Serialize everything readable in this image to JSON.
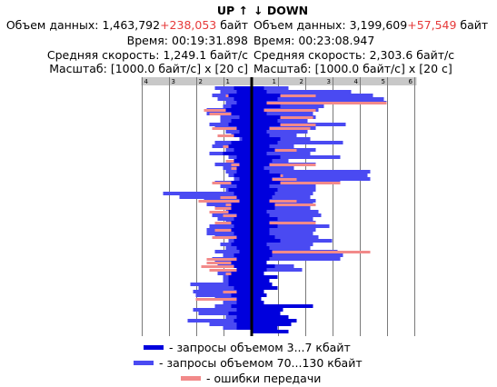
{
  "colors": {
    "small": "#0000dd",
    "large": "#4a4af2",
    "error": "#f28a8a",
    "axis_bar": "#c8c8c8",
    "grid": "#7a7a7a",
    "center": "#000000"
  },
  "up": {
    "title": "UP ↑",
    "volume_label": "Объем данных:",
    "volume_value": "1,463,792",
    "volume_err": "+238,053",
    "volume_unit": "байт",
    "time_label": "Время:",
    "time_value": "00:19:31.898",
    "speed_label": "Средняя скорость:",
    "speed_value": "1,249.1 байт/с",
    "scale_label": "Масштаб:",
    "scale_value": "[1000.0 байт/с] x [20 с]"
  },
  "down": {
    "title": "↓ DOWN",
    "volume_label": "Объем данных:",
    "volume_value": "3,199,609",
    "volume_err": "+57,549",
    "volume_unit": "байт",
    "time_label": "Время:",
    "time_value": "00:23:08.947",
    "speed_label": "Средняя скорость:",
    "speed_value": "2,303.6 байт/с",
    "scale_label": "Масштаб:",
    "scale_value": "[1000.0 байт/с] x [20 с]"
  },
  "legend": {
    "small": "- запросы объемом 3...7 кбайт",
    "large": "- запросы объемом 70...130 кбайт",
    "error": "- ошибки передачи"
  },
  "chart_data": {
    "type": "bar",
    "orientation": "horizontal-mirrored",
    "x_unit": "1000 байт/с",
    "y_unit": "20 с",
    "up_ticks": [
      "4",
      "3",
      "2",
      "1"
    ],
    "down_ticks": [
      "1",
      "2",
      "3",
      "4",
      "5",
      "6"
    ],
    "up_xlim": [
      0,
      4
    ],
    "down_xlim": [
      0,
      6
    ],
    "up_rows": [
      [
        0.6,
        1.3,
        0
      ],
      [
        0.5,
        1.1,
        0
      ],
      [
        0.8,
        1.4,
        0.9
      ],
      [
        0.6,
        1.2,
        0
      ],
      [
        0.5,
        0.9,
        0
      ],
      [
        0.7,
        1.0,
        0
      ],
      [
        0.9,
        1.6,
        1.7
      ],
      [
        0.7,
        1.6,
        1.5
      ],
      [
        0.4,
        1.1,
        0
      ],
      [
        0.7,
        1.1,
        0
      ],
      [
        0.8,
        1.5,
        0
      ],
      [
        0.5,
        1.3,
        1.4
      ],
      [
        0.4,
        0.9,
        0
      ],
      [
        0.6,
        0.7,
        1.2
      ],
      [
        0.3,
        0.4,
        0
      ],
      [
        0.7,
        1.3,
        0
      ],
      [
        0.8,
        1.4,
        1.0
      ],
      [
        0.6,
        0.9,
        0.6
      ],
      [
        1.0,
        1.5,
        0
      ],
      [
        0.5,
        0.8,
        0
      ],
      [
        0.6,
        0.6,
        0.9
      ],
      [
        0.4,
        1.3,
        0.7
      ],
      [
        0.5,
        1.0,
        0.7
      ],
      [
        0.5,
        0.9,
        0
      ],
      [
        0.6,
        0.8,
        0
      ],
      [
        0.4,
        0.6,
        0
      ],
      [
        0.7,
        1.3,
        1.4
      ],
      [
        0.5,
        1.1,
        0
      ],
      [
        0.8,
        0.9,
        0
      ],
      [
        0.6,
        3.2,
        0
      ],
      [
        0.5,
        2.6,
        1.1
      ],
      [
        0.4,
        1.7,
        1.9
      ],
      [
        0.7,
        1.6,
        0.9
      ],
      [
        0.7,
        1.3,
        1.3
      ],
      [
        0.8,
        0.9,
        1.5
      ],
      [
        0.5,
        1.4,
        1.0
      ],
      [
        0.6,
        1.2,
        0
      ],
      [
        0.7,
        0.9,
        1.3
      ],
      [
        0.6,
        1.5,
        0
      ],
      [
        0.7,
        1.6,
        1.3
      ],
      [
        0.6,
        1.6,
        0
      ],
      [
        0.5,
        1.3,
        1.4
      ],
      [
        0.6,
        0.8,
        0
      ],
      [
        0.7,
        1.1,
        0
      ],
      [
        0.5,
        0.9,
        0
      ],
      [
        0.4,
        1.3,
        0
      ],
      [
        0.6,
        1.0,
        0
      ],
      [
        0.5,
        1.4,
        1.6
      ],
      [
        0.7,
        1.3,
        1.6
      ],
      [
        0.6,
        1.2,
        1.8
      ],
      [
        0.5,
        0.5,
        1.5
      ],
      [
        0.7,
        1.2,
        0.9
      ],
      [
        0.8,
        1.0,
        0
      ],
      [
        0.8,
        1.0,
        0
      ],
      [
        0.8,
        2.2,
        0
      ],
      [
        0.6,
        1.9,
        0
      ],
      [
        0.5,
        2.1,
        1.0
      ],
      [
        0.7,
        2.0,
        0
      ],
      [
        0.5,
        1.3,
        2.0
      ],
      [
        0.5,
        1.0,
        0
      ],
      [
        0.7,
        1.3,
        0
      ],
      [
        0.5,
        2.1,
        0
      ],
      [
        0.8,
        1.9,
        0
      ],
      [
        0.5,
        0.9,
        0
      ],
      [
        0.6,
        2.3,
        0
      ],
      [
        0.5,
        1.5,
        0
      ],
      [
        0.5,
        1.0,
        0
      ]
    ],
    "down_rows": [
      [
        0.4,
        1.3,
        0
      ],
      [
        0.5,
        3.6,
        0
      ],
      [
        1.0,
        4.4,
        2.3
      ],
      [
        0.9,
        4.8,
        0
      ],
      [
        0.5,
        4.9,
        4.9
      ],
      [
        1.0,
        2.6,
        0
      ],
      [
        0.4,
        2.4,
        2.3
      ],
      [
        0.5,
        2.2,
        0
      ],
      [
        1.0,
        2.3,
        2.2
      ],
      [
        0.9,
        2.0,
        0
      ],
      [
        1.0,
        3.4,
        2.3
      ],
      [
        0.6,
        2.3,
        2.1
      ],
      [
        0.5,
        2.0,
        0
      ],
      [
        0.6,
        1.6,
        0
      ],
      [
        1.0,
        2.1,
        0
      ],
      [
        0.9,
        3.3,
        0
      ],
      [
        0.6,
        1.5,
        0
      ],
      [
        0.8,
        2.3,
        1.6
      ],
      [
        0.5,
        2.1,
        0
      ],
      [
        1.0,
        3.2,
        0
      ],
      [
        0.7,
        1.3,
        0
      ],
      [
        0.6,
        2.3,
        2.3
      ],
      [
        0.4,
        1.5,
        0
      ],
      [
        0.6,
        4.3,
        0
      ],
      [
        1.0,
        4.2,
        1.1
      ],
      [
        0.7,
        4.3,
        1.6
      ],
      [
        1.0,
        3.2,
        3.2
      ],
      [
        0.6,
        2.3,
        0
      ],
      [
        0.9,
        2.3,
        0
      ],
      [
        0.8,
        2.2,
        0
      ],
      [
        0.7,
        2.1,
        0
      ],
      [
        0.6,
        2.3,
        1.6
      ],
      [
        0.8,
        2.2,
        2.3
      ],
      [
        0.8,
        2.1,
        0
      ],
      [
        0.5,
        2.4,
        0.4
      ],
      [
        0.6,
        2.5,
        0
      ],
      [
        0.9,
        2.2,
        0
      ],
      [
        0.6,
        2.3,
        2.3
      ],
      [
        0.9,
        2.8,
        0
      ],
      [
        0.6,
        2.3,
        0
      ],
      [
        0.6,
        2.2,
        0.3
      ],
      [
        0.8,
        2.4,
        0
      ],
      [
        1.0,
        2.9,
        0
      ],
      [
        0.5,
        2.2,
        0
      ],
      [
        0.6,
        2.1,
        0
      ],
      [
        0.7,
        3.1,
        4.3
      ],
      [
        0.7,
        3.3,
        0
      ],
      [
        0.6,
        3.2,
        0
      ],
      [
        0.5,
        0,
        0
      ],
      [
        0.8,
        1.5,
        0
      ],
      [
        0.5,
        1.8,
        0
      ],
      [
        0.4,
        0,
        0.4
      ],
      [
        0.9,
        0,
        0
      ],
      [
        0.6,
        0,
        0
      ],
      [
        0.7,
        0,
        0
      ],
      [
        0.9,
        0,
        0
      ],
      [
        0.4,
        0,
        0
      ],
      [
        0.5,
        0,
        0
      ],
      [
        0.3,
        0,
        0
      ],
      [
        0.4,
        0,
        0
      ],
      [
        2.2,
        0,
        0
      ],
      [
        1.1,
        0,
        0
      ],
      [
        1.0,
        0,
        0
      ],
      [
        1.3,
        0,
        0
      ],
      [
        1.6,
        0,
        0
      ],
      [
        1.4,
        0,
        0
      ],
      [
        0.9,
        0,
        0
      ],
      [
        1.3,
        0,
        0
      ],
      [
        1.0,
        0,
        0
      ],
      [
        1.5,
        0,
        0
      ],
      [
        1.6,
        0,
        0
      ],
      [
        0.4,
        0,
        0
      ],
      [
        0.6,
        0,
        0
      ]
    ]
  }
}
